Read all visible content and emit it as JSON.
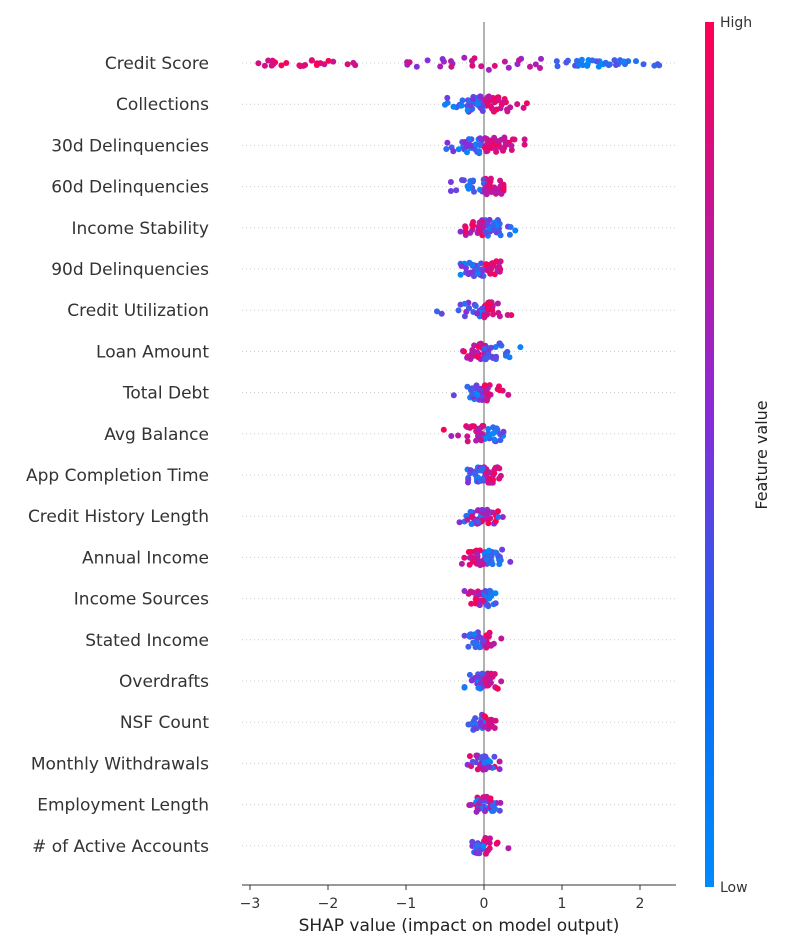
{
  "chart_data": {
    "type": "scatter",
    "subtype": "shap-beeswarm",
    "title": "",
    "xlabel": "SHAP value (impact on model output)",
    "ylabel": "",
    "xlim": [
      -3.1,
      2.5
    ],
    "xticks": [
      -3,
      -2,
      -1,
      0,
      1,
      2
    ],
    "xtick_labels": [
      "−3",
      "−2",
      "−1",
      "0",
      "1",
      "2"
    ],
    "grid": false,
    "colorbar": {
      "title": "Feature value",
      "high_label": "High",
      "low_label": "Low",
      "high_color": "#ff0052",
      "mid_color": "#8a2bd8",
      "low_color": "#008bfb",
      "placement": "right"
    },
    "colors": {
      "zero_line": "#999999",
      "label_text": "#333333"
    },
    "features": [
      {
        "name": "Credit Score",
        "spread": 2.2,
        "lo": -2.9,
        "hi": 2.2,
        "pos_color": "low",
        "n": 90,
        "pattern": "split"
      },
      {
        "name": "Collections",
        "spread": 0.5,
        "lo": -0.5,
        "hi": 0.55,
        "pos_color": "high",
        "n": 70
      },
      {
        "name": "30d Delinquencies",
        "spread": 0.5,
        "lo": -0.55,
        "hi": 0.52,
        "pos_color": "high",
        "n": 70
      },
      {
        "name": "60d Delinquencies",
        "spread": 0.35,
        "lo": -0.45,
        "hi": 0.25,
        "pos_color": "high",
        "n": 50
      },
      {
        "name": "Income Stability",
        "spread": 0.35,
        "lo": -0.35,
        "hi": 0.45,
        "pos_color": "low",
        "n": 50
      },
      {
        "name": "90d Delinquencies",
        "spread": 0.3,
        "lo": -0.3,
        "hi": 0.22,
        "pos_color": "high",
        "n": 50
      },
      {
        "name": "Credit Utilization",
        "spread": 0.3,
        "lo": -0.65,
        "hi": 0.35,
        "pos_color": "high",
        "n": 55
      },
      {
        "name": "Loan Amount",
        "spread": 0.3,
        "lo": -0.65,
        "hi": 0.48,
        "pos_color": "low",
        "n": 55
      },
      {
        "name": "Total Debt",
        "spread": 0.25,
        "lo": -0.5,
        "hi": 0.38,
        "pos_color": "high",
        "n": 50
      },
      {
        "name": "Avg Balance",
        "spread": 0.25,
        "lo": -0.6,
        "hi": 0.25,
        "pos_color": "low",
        "n": 50
      },
      {
        "name": "App Completion Time",
        "spread": 0.25,
        "lo": -0.25,
        "hi": 0.35,
        "pos_color": "high",
        "n": 50
      },
      {
        "name": "Credit History Length",
        "spread": 0.25,
        "lo": -0.38,
        "hi": 0.38,
        "pos_color": "mixed",
        "n": 50
      },
      {
        "name": "Annual Income",
        "spread": 0.25,
        "lo": -0.3,
        "hi": 0.4,
        "pos_color": "low",
        "n": 50
      },
      {
        "name": "Income Sources",
        "spread": 0.2,
        "lo": -0.25,
        "hi": 0.15,
        "pos_color": "low",
        "n": 40
      },
      {
        "name": "Stated Income",
        "spread": 0.2,
        "lo": -0.25,
        "hi": 0.28,
        "pos_color": "high",
        "n": 45
      },
      {
        "name": "Overdrafts",
        "spread": 0.2,
        "lo": -0.25,
        "hi": 0.22,
        "pos_color": "high",
        "n": 45
      },
      {
        "name": "NSF Count",
        "spread": 0.18,
        "lo": -0.2,
        "hi": 0.15,
        "pos_color": "high",
        "n": 40
      },
      {
        "name": "Monthly Withdrawals",
        "spread": 0.18,
        "lo": -0.3,
        "hi": 0.2,
        "pos_color": "mixed",
        "n": 40
      },
      {
        "name": "Employment Length",
        "spread": 0.18,
        "lo": -0.2,
        "hi": 0.3,
        "pos_color": "mixed",
        "n": 40
      },
      {
        "name": "# of Active Accounts",
        "spread": 0.15,
        "lo": -0.15,
        "hi": 0.32,
        "pos_color": "high",
        "n": 35
      }
    ]
  }
}
